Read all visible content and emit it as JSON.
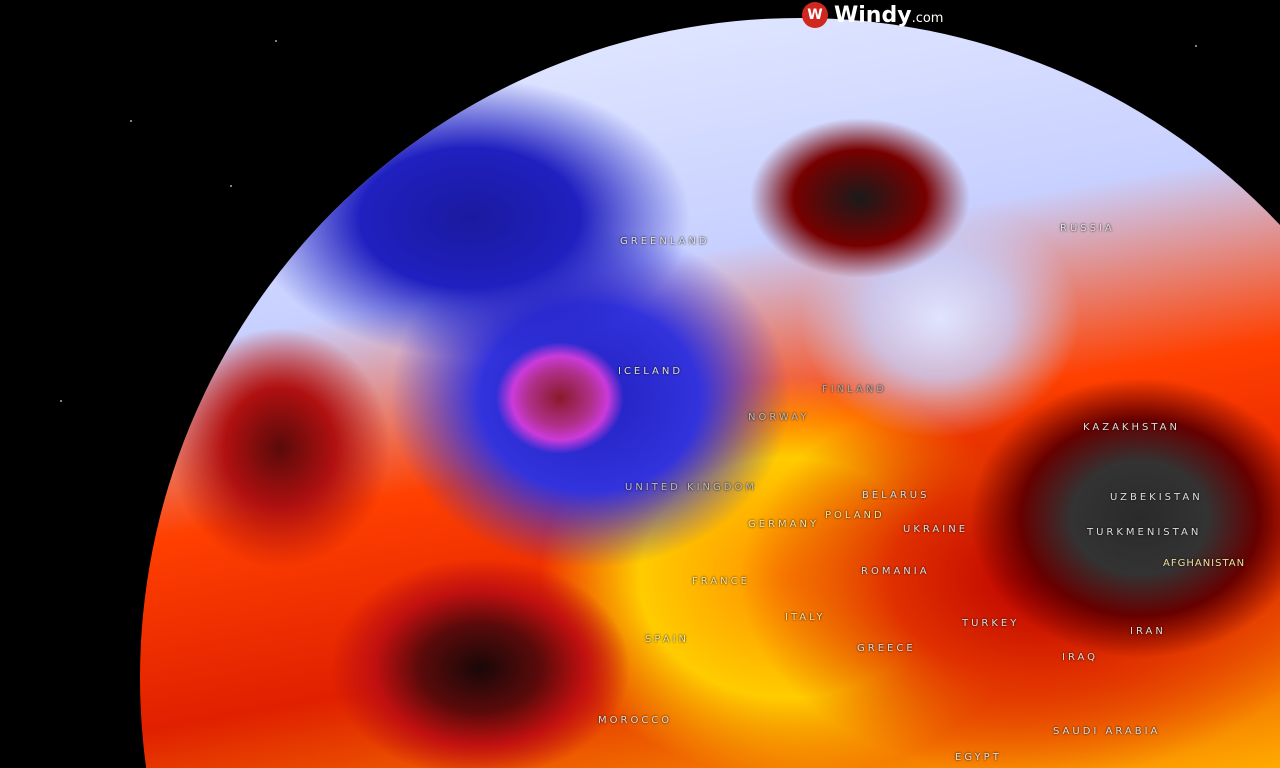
{
  "brand": {
    "name": "Windy",
    "suffix": ".com",
    "icon": "windy-logo-icon",
    "color": "#d0281e"
  },
  "map": {
    "labels": [
      "GREENLAND",
      "RUSSIA",
      "ICELAND",
      "FINLAND",
      "NORWAY",
      "UNITED KINGDOM",
      "BELARUS",
      "POLAND",
      "GERMANY",
      "UKRAINE",
      "KAZAKHSTAN",
      "UZBEKISTAN",
      "TURKMENISTAN",
      "AFGHANISTAN",
      "ROMANIA",
      "FRANCE",
      "ITALY",
      "SPAIN",
      "GREECE",
      "TURKEY",
      "IRAN",
      "IRAQ",
      "SAUDI ARABIA",
      "MOROCCO",
      "EGYPT"
    ]
  }
}
